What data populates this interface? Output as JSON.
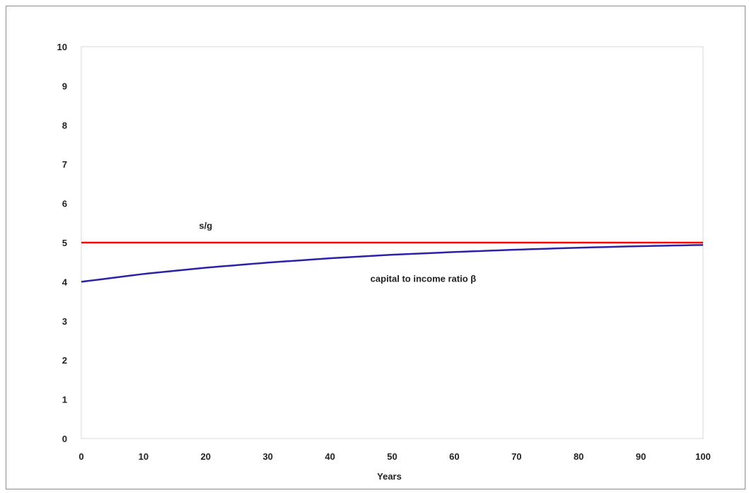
{
  "chart_data": {
    "type": "line",
    "title": "",
    "xlabel": "Years",
    "ylabel": "",
    "xlim": [
      0,
      100
    ],
    "ylim": [
      0,
      10
    ],
    "x_ticks": [
      0,
      10,
      20,
      30,
      40,
      50,
      60,
      70,
      80,
      90,
      100
    ],
    "y_ticks": [
      0,
      1,
      2,
      3,
      4,
      5,
      6,
      7,
      8,
      9,
      10
    ],
    "grid": false,
    "legend": "none",
    "x": [
      0,
      10,
      20,
      30,
      40,
      50,
      60,
      70,
      80,
      90,
      100
    ],
    "series": [
      {
        "color": "#ff0000",
        "values": [
          5,
          5,
          5,
          5,
          5,
          5,
          5,
          5,
          5,
          5,
          5
        ]
      },
      {
        "color": "#2b22a8",
        "values": [
          4.0,
          4.2,
          4.36,
          4.49,
          4.6,
          4.69,
          4.76,
          4.82,
          4.87,
          4.91,
          4.94
        ]
      }
    ],
    "annotations": [
      {
        "text": "s/g",
        "x": 20,
        "y": 5.35
      },
      {
        "text": "capital to income ratio β",
        "x": 55,
        "y": 4.0
      }
    ]
  }
}
